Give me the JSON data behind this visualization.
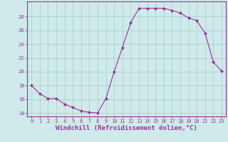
{
  "x": [
    0,
    1,
    2,
    3,
    4,
    5,
    6,
    7,
    8,
    9,
    10,
    11,
    12,
    13,
    14,
    15,
    16,
    17,
    18,
    19,
    20,
    21,
    22,
    23
  ],
  "y": [
    18.0,
    16.8,
    16.1,
    16.1,
    15.3,
    14.8,
    14.3,
    14.1,
    14.0,
    16.1,
    20.0,
    23.5,
    27.1,
    29.2,
    29.2,
    29.2,
    29.2,
    28.9,
    28.5,
    27.8,
    27.4,
    25.6,
    21.4,
    20.1
  ],
  "line_color": "#993399",
  "marker": "D",
  "marker_size": 2.0,
  "background_color": "#ceeaea",
  "grid_color": "#aed0d0",
  "xlabel": "Windchill (Refroidissement éolien,°C)",
  "ylim": [
    13.5,
    30.2
  ],
  "xlim": [
    -0.5,
    23.5
  ],
  "yticks": [
    14,
    16,
    18,
    20,
    22,
    24,
    26,
    28
  ],
  "xtick_labels": [
    "0",
    "1",
    "2",
    "3",
    "4",
    "5",
    "6",
    "7",
    "8",
    "9",
    "10",
    "11",
    "12",
    "13",
    "14",
    "15",
    "16",
    "17",
    "18",
    "19",
    "20",
    "21",
    "22",
    "23"
  ],
  "tick_color": "#993399",
  "label_color": "#993399",
  "axis_color": "#993399",
  "font_family": "monospace",
  "tick_fontsize": 5.0,
  "ylabel_fontsize": 5.5,
  "xlabel_fontsize": 6.5
}
